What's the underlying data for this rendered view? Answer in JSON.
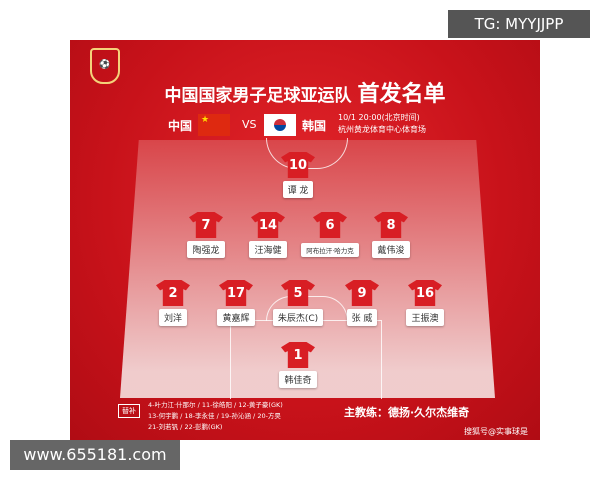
{
  "title": {
    "main": "中国国家男子足球亚运队",
    "emph": "首发名单"
  },
  "logo_text": "CFA",
  "match": {
    "home": "中国",
    "vs": "VS",
    "away": "韩国",
    "datetime": "10/1  20:00(北京时间)",
    "venue": "杭州黄龙体育中心体育场"
  },
  "players": [
    {
      "num": "10",
      "name": "谭 龙"
    },
    {
      "num": "7",
      "name": "陶强龙"
    },
    {
      "num": "14",
      "name": "汪海健"
    },
    {
      "num": "6",
      "name": "阿布拉汗·哈力克"
    },
    {
      "num": "8",
      "name": "戴伟浚"
    },
    {
      "num": "2",
      "name": "刘洋"
    },
    {
      "num": "17",
      "name": "黄嘉辉"
    },
    {
      "num": "5",
      "name": "朱辰杰(C)"
    },
    {
      "num": "9",
      "name": "张 威"
    },
    {
      "num": "16",
      "name": "王振澳"
    },
    {
      "num": "1",
      "name": "韩佳奇"
    }
  ],
  "subs": {
    "label": "替补",
    "lines": [
      "4-叶力江·什那尔 / 11-徐皓阳 / 12-黄子豪(GK)",
      "13-何宇鹏 / 18-李永佳 / 19-孙沁涵 / 20-方昊",
      "21-刘若钒 / 22-彭鹏(GK)"
    ]
  },
  "coach": "主教练：德扬·久尔杰维奇",
  "credit": "搜狐号@实事球是",
  "watermarks": {
    "tg": "TG: MYYJJPP",
    "site": "www.655181.com"
  },
  "colors": {
    "primary": "#c8121a",
    "jersey": "#d81e24"
  }
}
